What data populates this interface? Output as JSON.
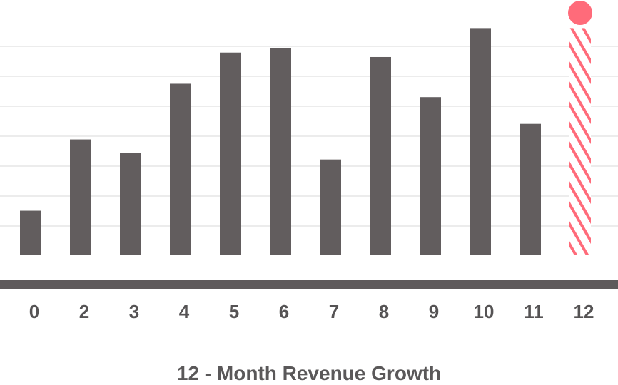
{
  "chart_data": {
    "type": "bar",
    "title": "12 - Month Revenue Growth",
    "xlabel": "",
    "ylabel": "",
    "categories": [
      "0",
      "2",
      "3",
      "4",
      "5",
      "6",
      "7",
      "8",
      "9",
      "10",
      "11",
      "12"
    ],
    "values": [
      2,
      5.2,
      4.6,
      7.7,
      9.1,
      9.3,
      4.3,
      8.9,
      7.1,
      10.2,
      5.9,
      10.2
    ],
    "projected_index": 11,
    "ylim": [
      0,
      10.5
    ],
    "grid": true,
    "colors": {
      "bar": "#625d5e",
      "projected": "#ff6b7a",
      "grid": "#e6e6e6",
      "axis": "#5e5a5b"
    }
  }
}
